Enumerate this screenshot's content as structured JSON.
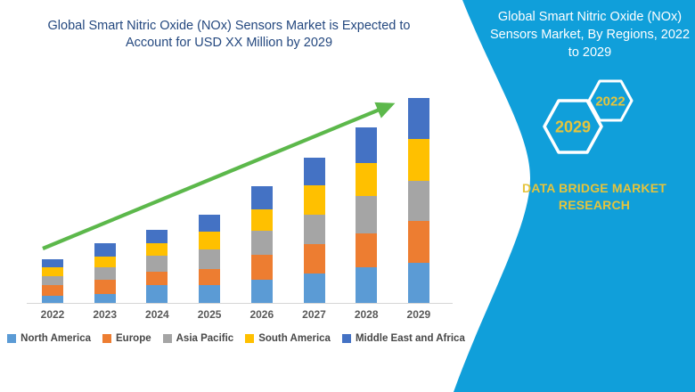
{
  "left_panel": {
    "title": "Global Smart Nitric Oxide (NOx) Sensors Market is Expected to Account for USD XX Million by 2029"
  },
  "right_panel": {
    "heading": "Global Smart Nitric Oxide (NOx) Sensors Market, By Regions, 2022 to 2029",
    "hexagons": [
      {
        "label": "2022"
      },
      {
        "label": "2029"
      }
    ],
    "brand": "DATA BRIDGE MARKET RESEARCH",
    "background_color": "#109FDA",
    "accent_text_color": "#E5C43C"
  },
  "chart_data": {
    "type": "bar",
    "stacked": true,
    "title": "Global Smart Nitric Oxide (NOx) Sensors Market is Expected to Account for USD XX Million by 2029",
    "categories": [
      "2022",
      "2023",
      "2024",
      "2025",
      "2026",
      "2027",
      "2028",
      "2029"
    ],
    "series": [
      {
        "name": "North America",
        "color": "#5B9BD5",
        "values": [
          8,
          10,
          20,
          20,
          26,
          33,
          40,
          45
        ]
      },
      {
        "name": "Europe",
        "color": "#ED7D31",
        "values": [
          12,
          16,
          15,
          18,
          28,
          33,
          38,
          47
        ]
      },
      {
        "name": "Asia Pacific",
        "color": "#A5A5A5",
        "values": [
          10,
          14,
          18,
          22,
          27,
          33,
          42,
          45
        ]
      },
      {
        "name": "South America",
        "color": "#FFC000",
        "values": [
          10,
          12,
          14,
          20,
          24,
          33,
          37,
          47
        ]
      },
      {
        "name": "Middle East and Africa",
        "color": "#4472C4",
        "values": [
          9,
          15,
          15,
          19,
          26,
          31,
          40,
          46
        ]
      }
    ],
    "totals": [
      49,
      67,
      82,
      99,
      131,
      163,
      197,
      230
    ],
    "xlabel": "",
    "ylabel": "",
    "unit": "USD Million (values shown as XX, not labeled on chart)",
    "ylim": [
      0,
      241
    ],
    "gridlines": false,
    "y_axis_visible": false,
    "legend_position": "bottom",
    "annotations": {
      "trend_arrow": {
        "color": "#5CB84B",
        "direction": "up-right",
        "from": "2022",
        "to": "2029"
      }
    }
  }
}
